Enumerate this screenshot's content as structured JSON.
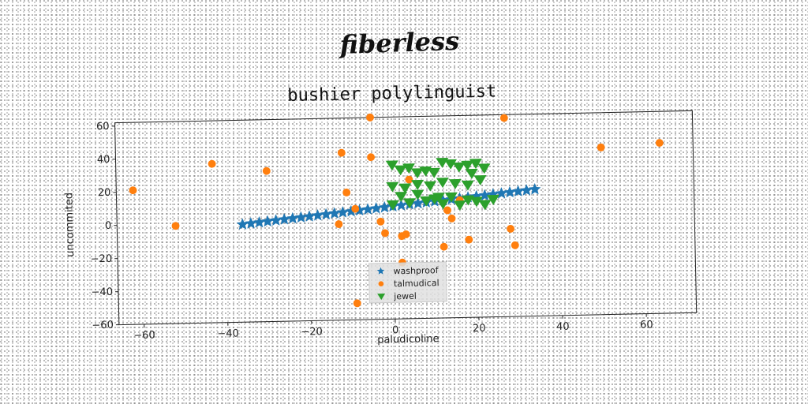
{
  "header": {
    "title": "fiberless"
  },
  "chart_data": {
    "type": "scatter",
    "title": "bushier polylinguist",
    "xlabel": "paludicoline",
    "ylabel": "uncommited",
    "xlim": [
      -66,
      72
    ],
    "ylim": [
      -60,
      62
    ],
    "xticks": [
      -60,
      -40,
      -20,
      0,
      20,
      40,
      60
    ],
    "yticks": [
      -60,
      -40,
      -20,
      0,
      20,
      40,
      60
    ],
    "grid": false,
    "legend_position": "bottom-center",
    "series": [
      {
        "name": "washproof",
        "marker": "star",
        "color": "#1f77b4",
        "x": [
          -36,
          -34,
          -32,
          -30,
          -28,
          -26,
          -24,
          -22,
          -20,
          -18,
          -16,
          -14,
          -12,
          -10,
          -8,
          -6,
          -4,
          -2,
          0,
          2,
          4,
          6,
          8,
          10,
          12,
          14,
          16,
          18,
          20,
          22,
          24,
          26,
          28,
          30,
          32,
          34
        ],
        "y": [
          -1,
          -0.5,
          0,
          0.5,
          1,
          1.5,
          2,
          2.5,
          3,
          3.5,
          4,
          4.5,
          5,
          5.5,
          6,
          6.5,
          7,
          7.5,
          8,
          8.5,
          9,
          9.5,
          10,
          10.5,
          11,
          11.5,
          12,
          12.5,
          13,
          13.5,
          14,
          14.5,
          15,
          15.5,
          16,
          16.5
        ]
      },
      {
        "name": "talmudical",
        "marker": "circle",
        "color": "#ff7f0e",
        "x": [
          -5,
          27,
          -62,
          -52,
          -43,
          -30,
          -12,
          -5,
          -11,
          -9,
          -13,
          50,
          64,
          4,
          3,
          13,
          14,
          16,
          28,
          29,
          18,
          12,
          -3,
          -2,
          2,
          2,
          -9
        ],
        "y": [
          62,
          60,
          21,
          -1,
          36,
          31,
          41,
          38,
          17,
          7,
          -2,
          41,
          43,
          24,
          -9,
          5,
          0,
          11,
          -7,
          -17,
          -13,
          -17,
          -1,
          -8,
          -10,
          -26,
          -50
        ]
      },
      {
        "name": "jewel",
        "marker": "triangle_down",
        "color": "#2ca02c",
        "x": [
          0,
          2,
          4,
          6,
          8,
          10,
          12,
          14,
          16,
          18,
          20,
          22,
          0,
          3,
          6,
          9,
          12,
          15,
          18,
          21,
          0,
          4,
          8,
          12,
          16,
          20,
          24,
          2,
          6,
          10,
          14,
          18,
          22,
          11,
          19
        ],
        "y": [
          33,
          30,
          31,
          28,
          29,
          28,
          34,
          33,
          31,
          32,
          33,
          30,
          20,
          19,
          21,
          20,
          22,
          21,
          20,
          23,
          9,
          10,
          11,
          9,
          8,
          10,
          11,
          14,
          15,
          12,
          13,
          11,
          8,
          13,
          27
        ]
      }
    ]
  }
}
